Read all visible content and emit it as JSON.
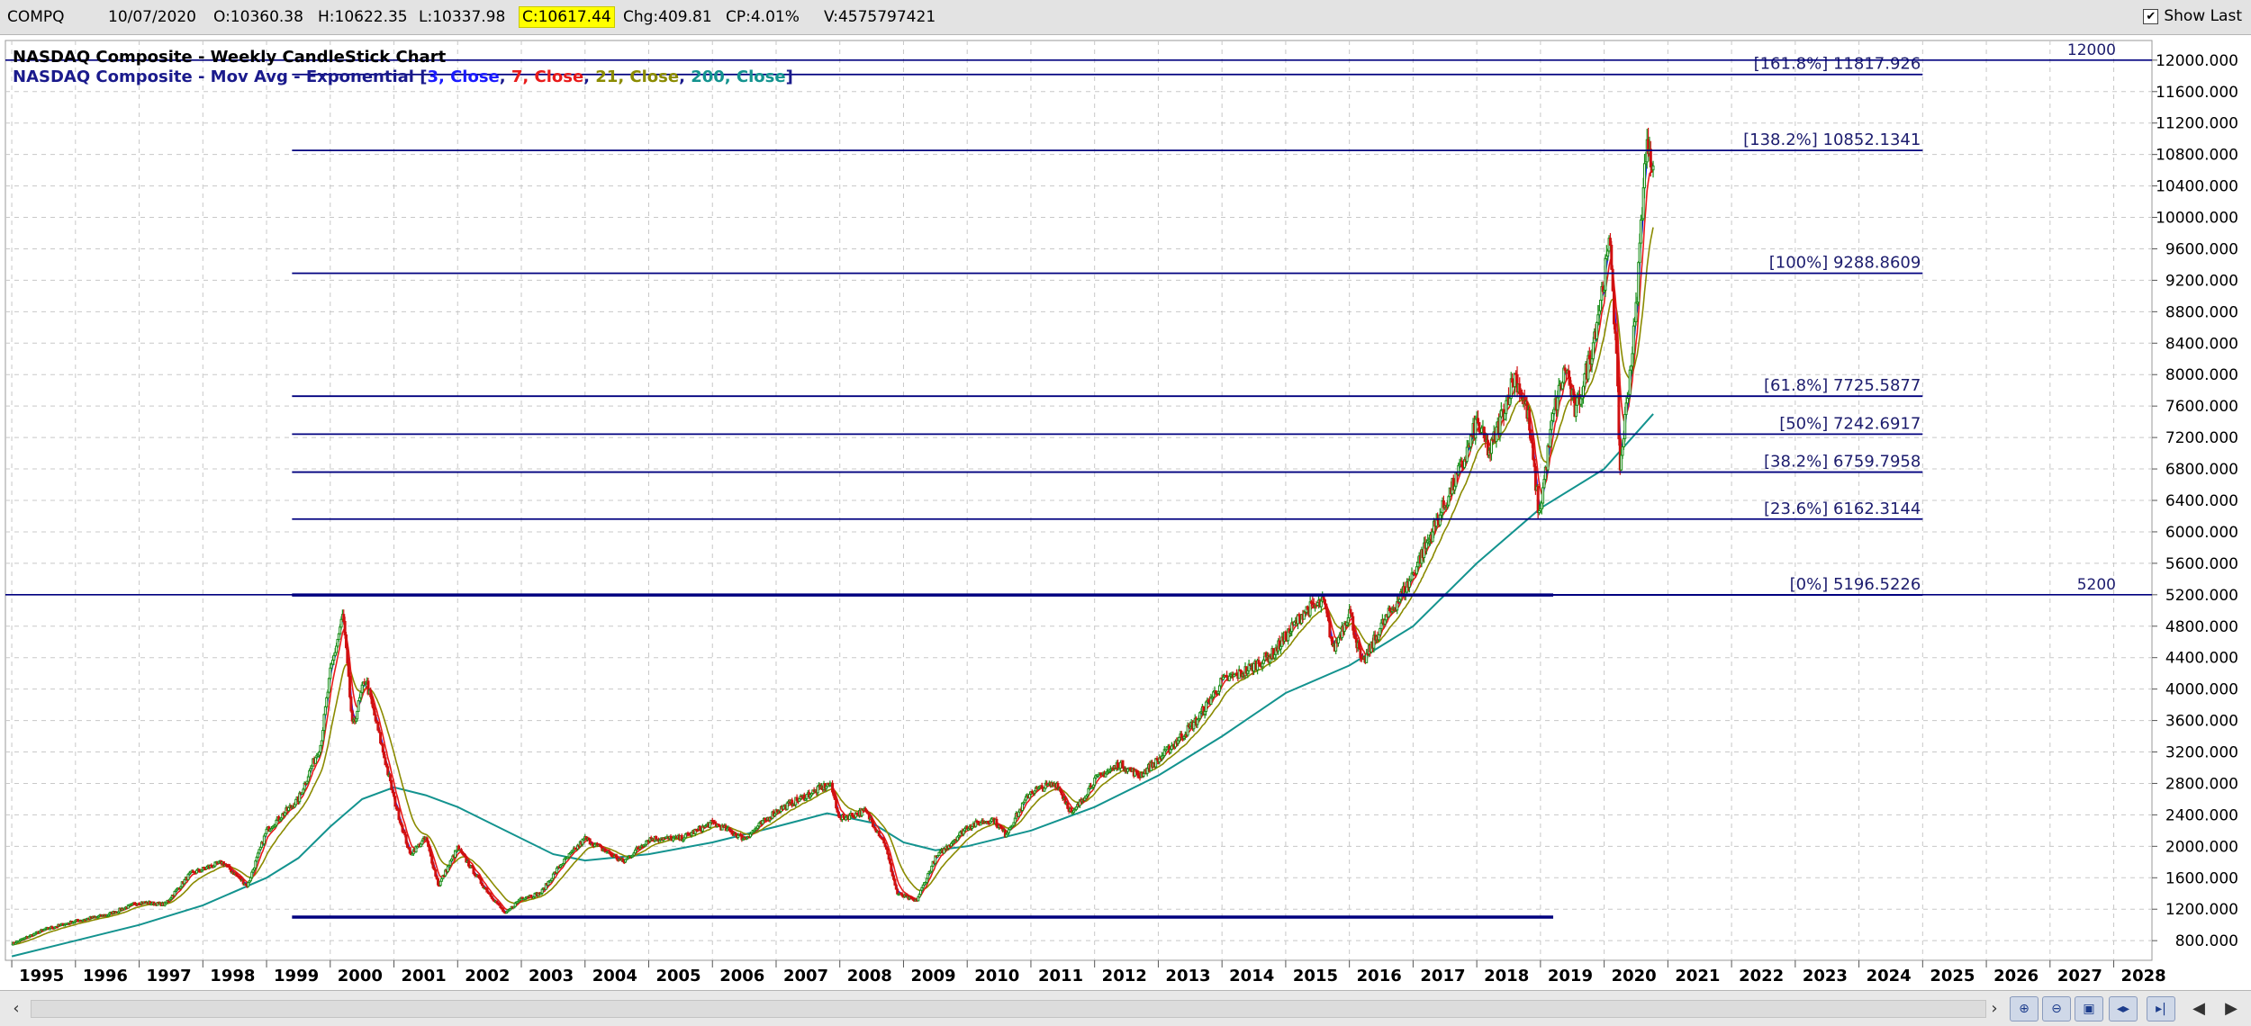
{
  "header": {
    "symbol": "COMPQ",
    "date": "10/07/2020",
    "open": "O:10360.38",
    "high": "H:10622.35",
    "low": "L:10337.98",
    "close": "C:10617.44",
    "change": "Chg:409.81",
    "change_pct": "CP:4.01%",
    "volume": "V:4575797421",
    "show_last_label": "Show Last",
    "show_last_checked": true
  },
  "legend": {
    "line1": "NASDAQ Composite - Weekly CandleStick Chart",
    "line2_prefix": "NASDAQ Composite - Mov Avg - Exponential [",
    "ma_parts": [
      {
        "text": "3, Close",
        "color": "#1a1aff"
      },
      {
        "text": "7, Close",
        "color": "#e81a1a"
      },
      {
        "text": "21, Close",
        "color": "#8b8b00"
      },
      {
        "text": "200, Close",
        "color": "#13938f"
      }
    ],
    "line2_suffix": "]"
  },
  "chart_data": {
    "type": "candlestick",
    "title": "NASDAQ Composite - Weekly CandleStick Chart",
    "x_tick_labels": [
      "1995",
      "1996",
      "1997",
      "1998",
      "1999",
      "2000",
      "2001",
      "2002",
      "2003",
      "2004",
      "2005",
      "2006",
      "2007",
      "2008",
      "2009",
      "2010",
      "2011",
      "2012",
      "2013",
      "2014",
      "2015",
      "2016",
      "2017",
      "2018",
      "2019",
      "2020",
      "2021",
      "2022",
      "2023",
      "2024",
      "2025",
      "2026",
      "2027",
      "2028"
    ],
    "xlim": [
      1994.9,
      2028.6
    ],
    "y_tick_labels": [
      "800.000",
      "1200.000",
      "1600.000",
      "2000.000",
      "2400.000",
      "2800.000",
      "3200.000",
      "3600.000",
      "4000.000",
      "4400.000",
      "4800.000",
      "5200.000",
      "5600.000",
      "6000.000",
      "6400.000",
      "6800.000",
      "7200.000",
      "7600.000",
      "8000.000",
      "8400.000",
      "8800.000",
      "9200.000",
      "9600.000",
      "10000.000",
      "10400.000",
      "10800.000",
      "11200.000",
      "11600.000",
      "12000.000"
    ],
    "ylim": [
      550,
      12250
    ],
    "grid": true,
    "price": [
      [
        1995.0,
        760
      ],
      [
        1995.5,
        940
      ],
      [
        1996.0,
        1050
      ],
      [
        1996.5,
        1130
      ],
      [
        1997.0,
        1290
      ],
      [
        1997.4,
        1260
      ],
      [
        1997.8,
        1650
      ],
      [
        1998.3,
        1800
      ],
      [
        1998.7,
        1500
      ],
      [
        1999.0,
        2200
      ],
      [
        1999.5,
        2600
      ],
      [
        1999.85,
        3300
      ],
      [
        2000.0,
        4200
      ],
      [
        2000.2,
        4950
      ],
      [
        2000.35,
        3500
      ],
      [
        2000.55,
        4150
      ],
      [
        2000.8,
        3300
      ],
      [
        2001.0,
        2600
      ],
      [
        2001.25,
        1900
      ],
      [
        2001.5,
        2100
      ],
      [
        2001.7,
        1500
      ],
      [
        2002.0,
        1980
      ],
      [
        2002.4,
        1500
      ],
      [
        2002.75,
        1140
      ],
      [
        2003.0,
        1350
      ],
      [
        2003.3,
        1400
      ],
      [
        2003.6,
        1750
      ],
      [
        2004.0,
        2100
      ],
      [
        2004.6,
        1800
      ],
      [
        2005.0,
        2100
      ],
      [
        2005.5,
        2100
      ],
      [
        2006.0,
        2300
      ],
      [
        2006.5,
        2100
      ],
      [
        2007.0,
        2450
      ],
      [
        2007.6,
        2700
      ],
      [
        2007.85,
        2800
      ],
      [
        2008.0,
        2350
      ],
      [
        2008.4,
        2450
      ],
      [
        2008.7,
        2050
      ],
      [
        2008.9,
        1400
      ],
      [
        2009.2,
        1300
      ],
      [
        2009.5,
        1850
      ],
      [
        2010.0,
        2250
      ],
      [
        2010.4,
        2350
      ],
      [
        2010.6,
        2150
      ],
      [
        2011.0,
        2700
      ],
      [
        2011.4,
        2800
      ],
      [
        2011.65,
        2400
      ],
      [
        2012.0,
        2850
      ],
      [
        2012.4,
        3050
      ],
      [
        2012.7,
        2900
      ],
      [
        2013.0,
        3100
      ],
      [
        2013.6,
        3600
      ],
      [
        2014.0,
        4100
      ],
      [
        2014.3,
        4200
      ],
      [
        2014.8,
        4450
      ],
      [
        2015.3,
        5000
      ],
      [
        2015.6,
        5100
      ],
      [
        2015.75,
        4500
      ],
      [
        2016.0,
        5000
      ],
      [
        2016.2,
        4300
      ],
      [
        2016.5,
        4800
      ],
      [
        2016.9,
        5300
      ],
      [
        2017.3,
        6000
      ],
      [
        2017.8,
        6900
      ],
      [
        2018.0,
        7400
      ],
      [
        2018.2,
        7000
      ],
      [
        2018.6,
        8000
      ],
      [
        2018.8,
        7500
      ],
      [
        2018.98,
        6200
      ],
      [
        2019.2,
        7500
      ],
      [
        2019.4,
        8100
      ],
      [
        2019.55,
        7500
      ],
      [
        2019.8,
        8300
      ],
      [
        2020.1,
        9700
      ],
      [
        2020.2,
        8000
      ],
      [
        2020.25,
        6800
      ],
      [
        2020.5,
        8800
      ],
      [
        2020.62,
        10500
      ],
      [
        2020.7,
        11000
      ],
      [
        2020.77,
        10600
      ]
    ],
    "ma200": [
      [
        1995.0,
        600
      ],
      [
        1996.0,
        800
      ],
      [
        1997.0,
        1000
      ],
      [
        1998.0,
        1250
      ],
      [
        1999.0,
        1600
      ],
      [
        1999.5,
        1850
      ],
      [
        2000.0,
        2250
      ],
      [
        2000.5,
        2600
      ],
      [
        2001.0,
        2750
      ],
      [
        2001.5,
        2650
      ],
      [
        2002.0,
        2500
      ],
      [
        2002.5,
        2300
      ],
      [
        2003.0,
        2100
      ],
      [
        2003.5,
        1900
      ],
      [
        2004.0,
        1820
      ],
      [
        2005.0,
        1900
      ],
      [
        2006.0,
        2050
      ],
      [
        2007.0,
        2250
      ],
      [
        2007.8,
        2420
      ],
      [
        2008.5,
        2300
      ],
      [
        2009.0,
        2050
      ],
      [
        2009.5,
        1950
      ],
      [
        2010.0,
        2000
      ],
      [
        2011.0,
        2200
      ],
      [
        2012.0,
        2500
      ],
      [
        2013.0,
        2900
      ],
      [
        2014.0,
        3400
      ],
      [
        2015.0,
        3950
      ],
      [
        2016.0,
        4300
      ],
      [
        2017.0,
        4800
      ],
      [
        2018.0,
        5600
      ],
      [
        2019.0,
        6300
      ],
      [
        2020.0,
        6800
      ],
      [
        2020.77,
        7500
      ]
    ],
    "fib_levels": [
      {
        "label": "[161.8%] 11817.926",
        "value": 11817.926,
        "x0": 1999.4,
        "x1": 2025.0
      },
      {
        "label": "[138.2%] 10852.1341",
        "value": 10852.1341,
        "x0": 1999.4,
        "x1": 2025.0
      },
      {
        "label": "[100%] 9288.8609",
        "value": 9288.8609,
        "x0": 1999.4,
        "x1": 2025.0
      },
      {
        "label": "[61.8%] 7725.5877",
        "value": 7725.5877,
        "x0": 1999.4,
        "x1": 2025.0
      },
      {
        "label": "[50%] 7242.6917",
        "value": 7242.6917,
        "x0": 1999.4,
        "x1": 2025.0
      },
      {
        "label": "[38.2%] 6759.7958",
        "value": 6759.7958,
        "x0": 1999.4,
        "x1": 2025.0
      },
      {
        "label": "[23.6%] 6162.3144",
        "value": 6162.3144,
        "x0": 1999.4,
        "x1": 2025.0
      },
      {
        "label": "[0%] 5196.5226",
        "value": 5196.5226,
        "x0": 1999.4,
        "x1": 2025.0
      }
    ],
    "horizontal_lines": [
      {
        "label": "12000",
        "value": 12000
      },
      {
        "label": "5200",
        "value": 5200
      }
    ],
    "support_lines": [
      {
        "value": 5196.5,
        "x0": 1999.4,
        "x1": 2019.2
      },
      {
        "value": 1100,
        "x0": 1999.4,
        "x1": 2019.2
      }
    ],
    "colors": {
      "background": "#ffffff",
      "grid": "#c8c8c8",
      "fib_line": "#00007f",
      "label_text": "#1c1c6e",
      "candle_up": "#1a8f1a",
      "candle_down": "#d01010",
      "ma3": "#1a1aff",
      "ma7": "#e81a1a",
      "ma21": "#8b8b00",
      "ma200": "#13938f"
    }
  }
}
